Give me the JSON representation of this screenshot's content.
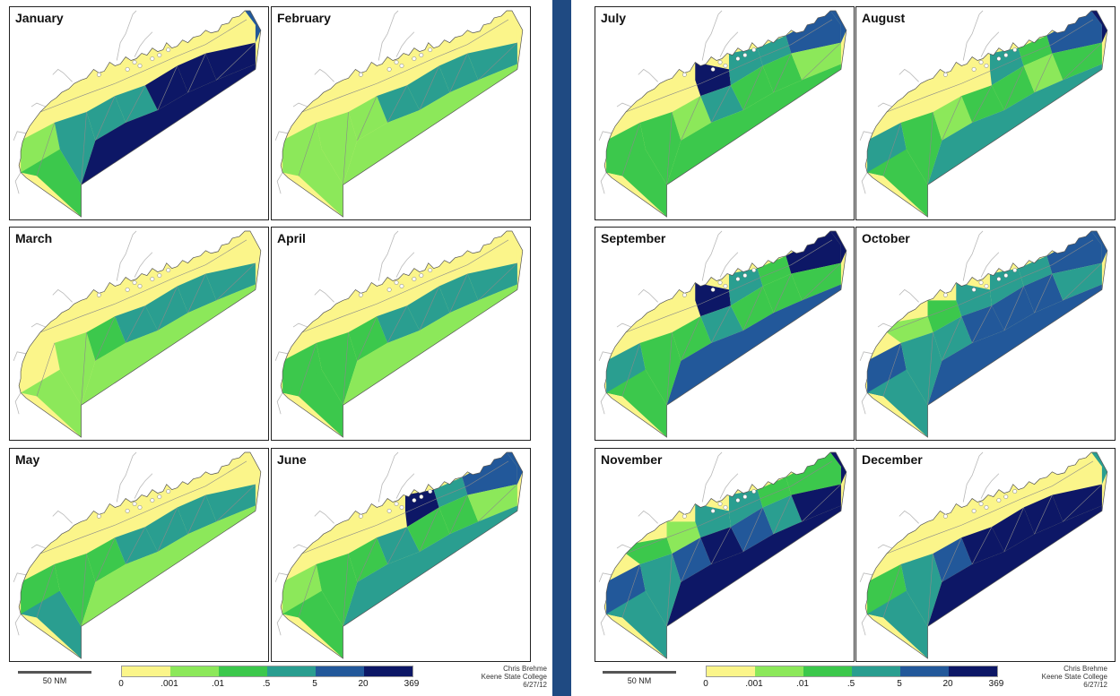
{
  "months": [
    {
      "label": "January",
      "zones": [
        1,
        0,
        0,
        0,
        0,
        0,
        0,
        2,
        3,
        3,
        3,
        5,
        5,
        5,
        5,
        4
      ]
    },
    {
      "label": "February",
      "zones": [
        1,
        0,
        0,
        0,
        0,
        0,
        0,
        1,
        1,
        1,
        3,
        3,
        3,
        3,
        1,
        0
      ]
    },
    {
      "label": "March",
      "zones": [
        0,
        0,
        0,
        0,
        0,
        0,
        0,
        1,
        1,
        2,
        3,
        3,
        3,
        3,
        1,
        0
      ]
    },
    {
      "label": "April",
      "zones": [
        2,
        0,
        0,
        0,
        0,
        0,
        0,
        2,
        2,
        2,
        3,
        3,
        3,
        3,
        1,
        0
      ]
    },
    {
      "label": "May",
      "zones": [
        2,
        0,
        0,
        0,
        0,
        0,
        0,
        3,
        2,
        2,
        3,
        3,
        3,
        3,
        1,
        0
      ]
    },
    {
      "label": "June",
      "zones": [
        1,
        0,
        0,
        0,
        5,
        3,
        4,
        2,
        2,
        2,
        3,
        2,
        2,
        1,
        3,
        4
      ]
    },
    {
      "label": "July",
      "zones": [
        2,
        0,
        0,
        5,
        3,
        3,
        4,
        2,
        2,
        1,
        3,
        2,
        2,
        1,
        2,
        4
      ]
    },
    {
      "label": "August",
      "zones": [
        3,
        0,
        0,
        0,
        3,
        2,
        4,
        2,
        2,
        1,
        2,
        2,
        1,
        2,
        3,
        5
      ]
    },
    {
      "label": "September",
      "zones": [
        3,
        0,
        0,
        5,
        3,
        2,
        5,
        2,
        2,
        2,
        3,
        2,
        2,
        2,
        4,
        5
      ]
    },
    {
      "label": "October",
      "zones": [
        4,
        1,
        2,
        3,
        3,
        3,
        4,
        3,
        3,
        3,
        4,
        4,
        4,
        3,
        4,
        4
      ]
    },
    {
      "label": "November",
      "zones": [
        4,
        2,
        1,
        3,
        3,
        2,
        2,
        3,
        3,
        4,
        5,
        4,
        3,
        5,
        5,
        5
      ]
    },
    {
      "label": "December",
      "zones": [
        2,
        0,
        0,
        0,
        0,
        0,
        0,
        3,
        3,
        4,
        5,
        5,
        5,
        5,
        5,
        3
      ]
    }
  ],
  "legend": {
    "colors": [
      "#fbf58a",
      "#8ce85a",
      "#3cc84c",
      "#2a9e90",
      "#22589a",
      "#0d1766"
    ],
    "ticks": [
      "0",
      ".001",
      ".01",
      ".5",
      "5",
      "20",
      "369"
    ]
  },
  "scale_label": "50 NM",
  "credit": {
    "name": "Chris Brehme",
    "org": "Keene State College",
    "date": "6/27/12"
  }
}
